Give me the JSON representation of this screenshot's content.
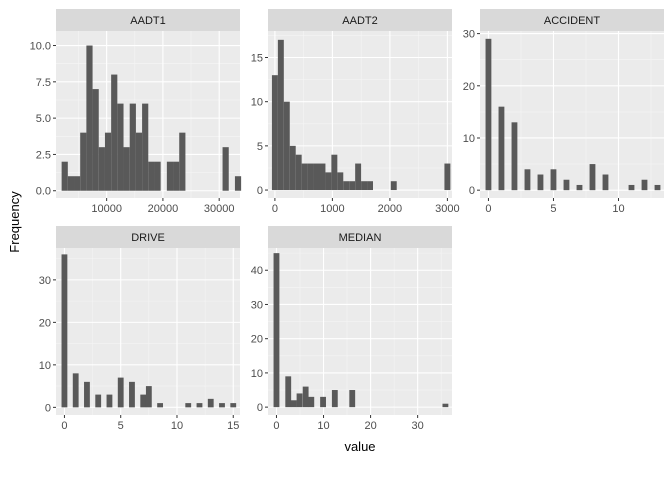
{
  "chart_data": {
    "type": "bar",
    "chart_kind": "faceted histogram",
    "ylabel": "Frequency",
    "xlabel": "value",
    "colors": {
      "bar": "#595959",
      "panel": "#ebebeb",
      "grid_major": "#ffffff",
      "grid_minor": "#f5f5f5",
      "strip": "#d9d9d9",
      "text": "#4d4d4d",
      "title": "#000000"
    },
    "facets": [
      {
        "title": "AADT1",
        "xlim": [
          1000,
          33700
        ],
        "ylim": [
          -0.5,
          11.0
        ],
        "x_ticks": [
          10000,
          20000,
          30000
        ],
        "x_tick_labels": [
          "10000",
          "20000",
          "30000"
        ],
        "y_ticks": [
          0,
          2.5,
          5,
          7.5,
          10
        ],
        "y_tick_labels": [
          "0.0",
          "2.5",
          "5.0",
          "7.5",
          "10.0"
        ],
        "bin_width": 1100,
        "bins": [
          {
            "x": 2550,
            "count": 2
          },
          {
            "x": 3650,
            "count": 1
          },
          {
            "x": 4750,
            "count": 1
          },
          {
            "x": 5850,
            "count": 4
          },
          {
            "x": 6950,
            "count": 10
          },
          {
            "x": 8050,
            "count": 7
          },
          {
            "x": 9150,
            "count": 3
          },
          {
            "x": 10250,
            "count": 4
          },
          {
            "x": 11350,
            "count": 8
          },
          {
            "x": 12450,
            "count": 6
          },
          {
            "x": 13550,
            "count": 3
          },
          {
            "x": 14650,
            "count": 6
          },
          {
            "x": 15750,
            "count": 4
          },
          {
            "x": 16850,
            "count": 6
          },
          {
            "x": 17950,
            "count": 2
          },
          {
            "x": 19050,
            "count": 2
          },
          {
            "x": 21250,
            "count": 2
          },
          {
            "x": 22350,
            "count": 2
          },
          {
            "x": 23450,
            "count": 4
          },
          {
            "x": 31150,
            "count": 3
          },
          {
            "x": 33350,
            "count": 1
          }
        ]
      },
      {
        "title": "AADT2",
        "xlim": [
          -120,
          3080
        ],
        "ylim": [
          -0.9,
          18.0
        ],
        "x_ticks": [
          0,
          1000,
          2000,
          3000
        ],
        "x_tick_labels": [
          "0",
          "1000",
          "2000",
          "3000"
        ],
        "y_ticks": [
          0,
          5,
          10,
          15
        ],
        "y_tick_labels": [
          "0",
          "5",
          "10",
          "15"
        ],
        "bin_width": 103.4,
        "bins": [
          {
            "x": 0,
            "count": 13
          },
          {
            "x": 103.4,
            "count": 17
          },
          {
            "x": 206.8,
            "count": 10
          },
          {
            "x": 310.2,
            "count": 5
          },
          {
            "x": 413.6,
            "count": 4
          },
          {
            "x": 517,
            "count": 3
          },
          {
            "x": 620.4,
            "count": 3
          },
          {
            "x": 723.8,
            "count": 3
          },
          {
            "x": 827.2,
            "count": 3
          },
          {
            "x": 930.6,
            "count": 2
          },
          {
            "x": 1034,
            "count": 4
          },
          {
            "x": 1137.4,
            "count": 2
          },
          {
            "x": 1240.8,
            "count": 1
          },
          {
            "x": 1344.2,
            "count": 1
          },
          {
            "x": 1447.6,
            "count": 3
          },
          {
            "x": 1551,
            "count": 1
          },
          {
            "x": 1654.4,
            "count": 1
          },
          {
            "x": 2067,
            "count": 1
          },
          {
            "x": 3000,
            "count": 3
          }
        ]
      },
      {
        "title": "ACCIDENT",
        "xlim": [
          -0.65,
          13.5
        ],
        "ylim": [
          -1.5,
          30.5
        ],
        "x_ticks": [
          0,
          5,
          10
        ],
        "x_tick_labels": [
          "0",
          "5",
          "10"
        ],
        "y_ticks": [
          0,
          10,
          20,
          30
        ],
        "y_tick_labels": [
          "0",
          "10",
          "20",
          "30"
        ],
        "bin_width": 0.448,
        "bins": [
          {
            "x": 0,
            "count": 29
          },
          {
            "x": 1,
            "count": 16
          },
          {
            "x": 2,
            "count": 13
          },
          {
            "x": 3,
            "count": 4
          },
          {
            "x": 4,
            "count": 3
          },
          {
            "x": 5,
            "count": 4
          },
          {
            "x": 6,
            "count": 2
          },
          {
            "x": 7,
            "count": 1
          },
          {
            "x": 8,
            "count": 5
          },
          {
            "x": 9,
            "count": 3
          },
          {
            "x": 11,
            "count": 1
          },
          {
            "x": 12,
            "count": 2
          },
          {
            "x": 13,
            "count": 1
          }
        ]
      },
      {
        "title": "DRIVE",
        "xlim": [
          -0.75,
          15.6
        ],
        "ylim": [
          -1.8,
          37.5
        ],
        "x_ticks": [
          0,
          5,
          10,
          15
        ],
        "x_tick_labels": [
          "0",
          "5",
          "10",
          "15"
        ],
        "y_ticks": [
          0,
          10,
          20,
          30
        ],
        "y_tick_labels": [
          "0",
          "10",
          "20",
          "30"
        ],
        "bin_width": 0.517,
        "bins": [
          {
            "x": 0,
            "count": 36
          },
          {
            "x": 1,
            "count": 8
          },
          {
            "x": 2,
            "count": 6
          },
          {
            "x": 3,
            "count": 3
          },
          {
            "x": 4,
            "count": 3
          },
          {
            "x": 5,
            "count": 7
          },
          {
            "x": 6,
            "count": 6
          },
          {
            "x": 7,
            "count": 3
          },
          {
            "x": 7.5,
            "count": 5
          },
          {
            "x": 8.5,
            "count": 1
          },
          {
            "x": 11,
            "count": 1
          },
          {
            "x": 12,
            "count": 1
          },
          {
            "x": 13,
            "count": 2
          },
          {
            "x": 14,
            "count": 1
          },
          {
            "x": 15,
            "count": 1
          }
        ]
      },
      {
        "title": "MEDIAN",
        "xlim": [
          -1.8,
          37.3
        ],
        "ylim": [
          -2.3,
          46.5
        ],
        "x_ticks": [
          0,
          10,
          20,
          30
        ],
        "x_tick_labels": [
          "0",
          "10",
          "20",
          "30"
        ],
        "y_ticks": [
          0,
          10,
          20,
          30,
          40
        ],
        "y_tick_labels": [
          "0",
          "10",
          "20",
          "30",
          "40"
        ],
        "bin_width": 1.24,
        "bins": [
          {
            "x": 0,
            "count": 45
          },
          {
            "x": 2.5,
            "count": 9
          },
          {
            "x": 3.7,
            "count": 2
          },
          {
            "x": 4.9,
            "count": 4
          },
          {
            "x": 6.2,
            "count": 6
          },
          {
            "x": 7.4,
            "count": 3
          },
          {
            "x": 9.9,
            "count": 3
          },
          {
            "x": 12.4,
            "count": 5
          },
          {
            "x": 16.1,
            "count": 5
          },
          {
            "x": 35.9,
            "count": 1
          }
        ]
      }
    ]
  }
}
